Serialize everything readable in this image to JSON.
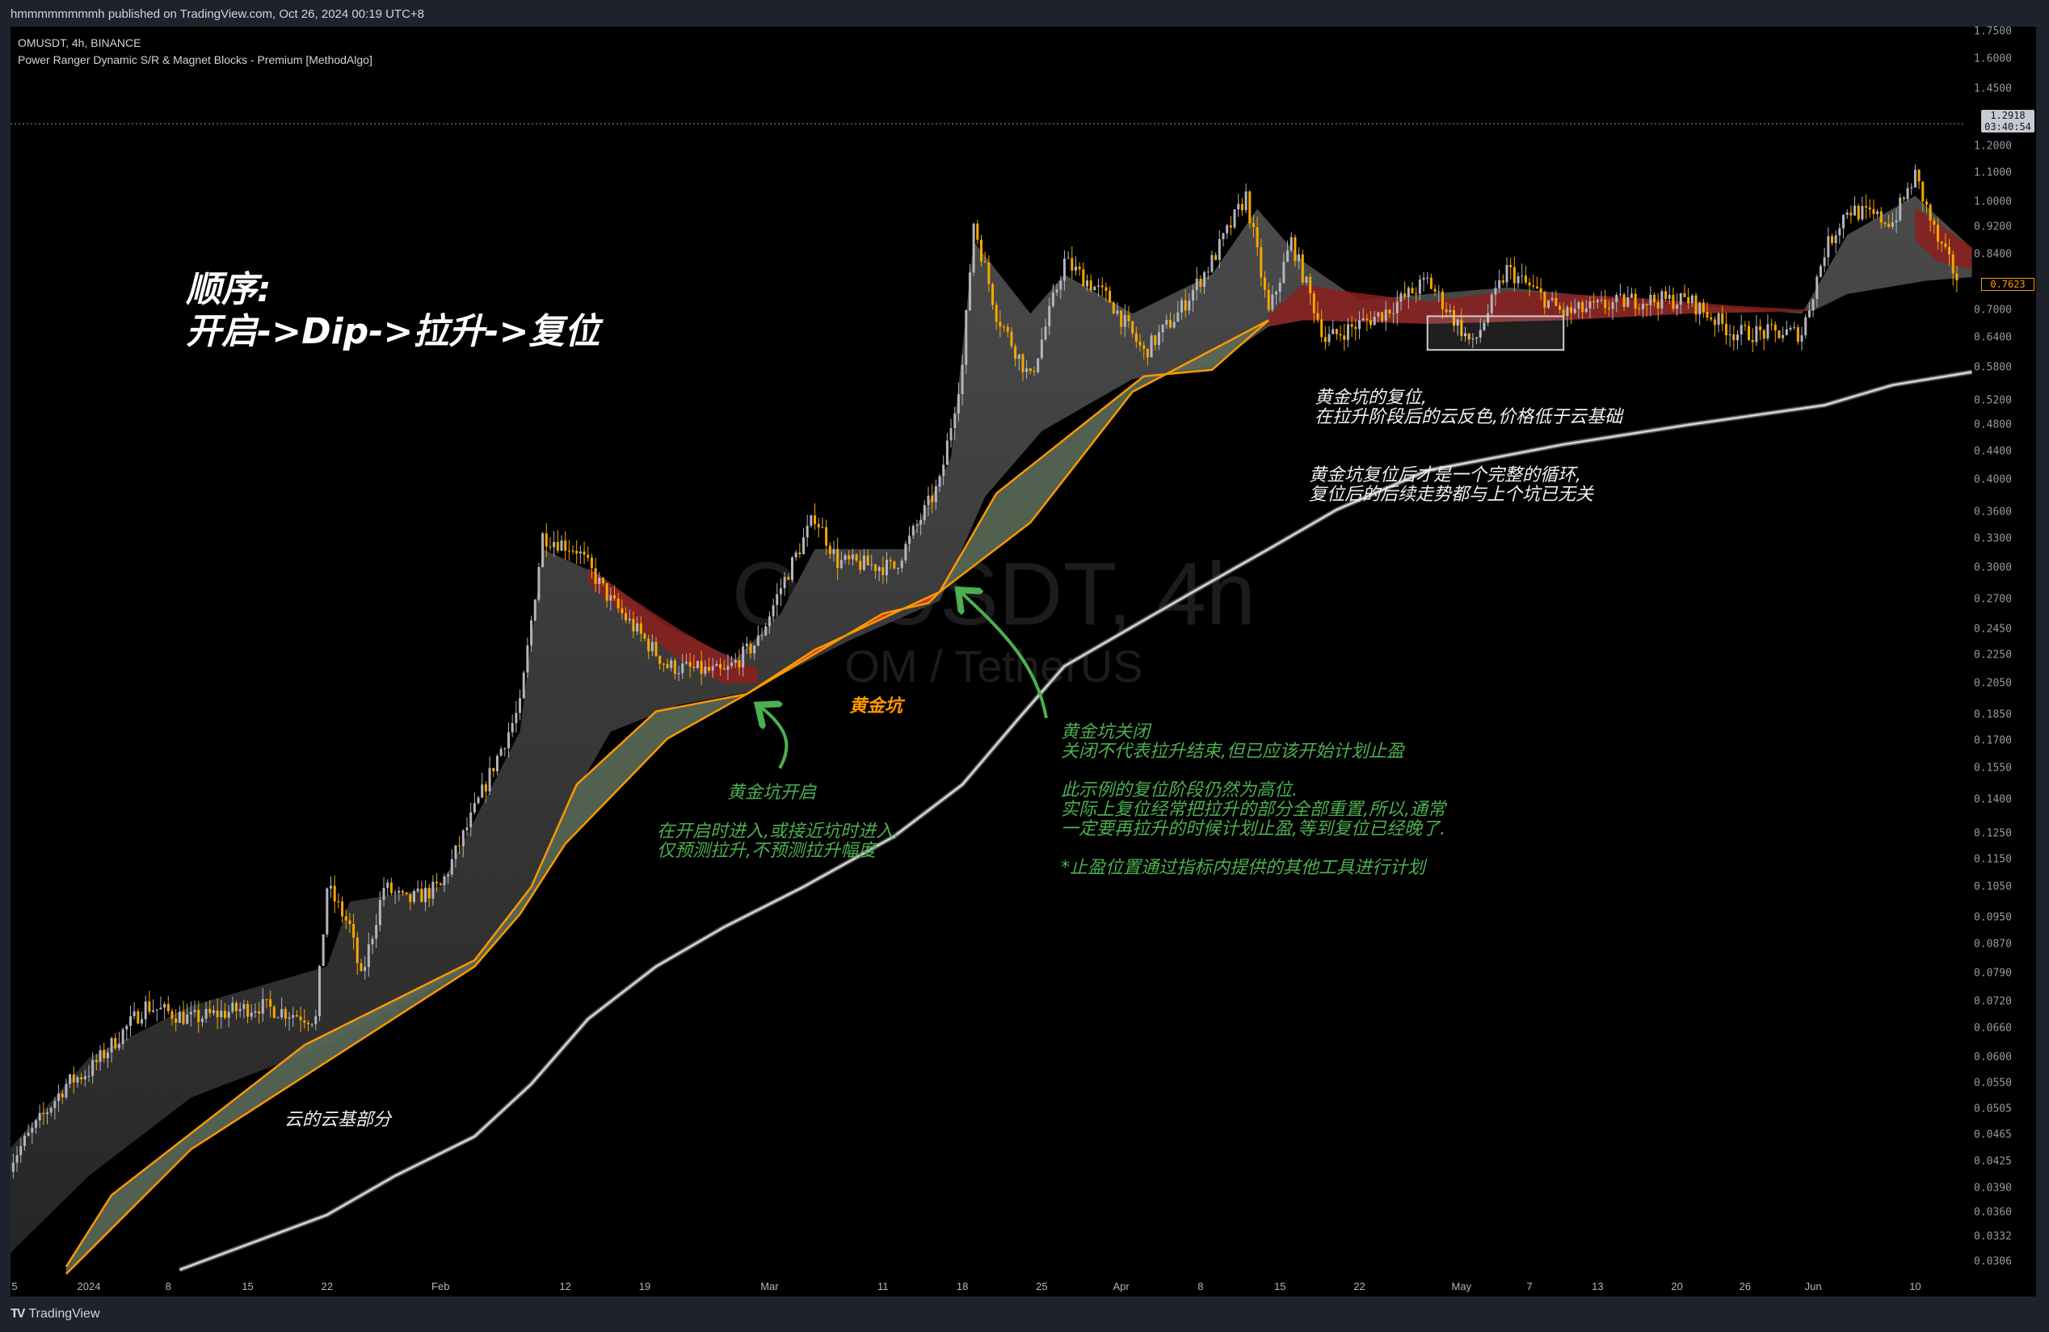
{
  "header": {
    "published": "hmmmmmmmmh published on TradingView.com, Oct 26, 2024 00:19 UTC+8"
  },
  "legend": {
    "symbol": "OMUSDT, 4h, BINANCE",
    "indicator": "Power Ranger Dynamic S/R & Magnet Blocks - Premium [MethodAlgo]"
  },
  "watermark": {
    "line1": "OMUSDT, 4h",
    "line2": "OM / TetherUS"
  },
  "footer": {
    "brand": "TradingView",
    "mark": "TV"
  },
  "annotations": {
    "title": "顺序:\n开启->Dip->拉升->复位",
    "cloud_base": "云的云基部分",
    "golden_pit": "黄金坑",
    "pit_open": "黄金坑开启",
    "pit_open_note": "在开启时进入,或接近坑时进入,\n仅预测拉升,不预测拉升幅度",
    "pit_close_note": "黄金坑关闭\n关闭不代表拉升结束,但已应该开始计划止盈\n\n此示例的复位阶段仍然为高位.\n实际上复位经常把拉升的部分全部重置,所以,通常\n一定要再拉升的时候计划止盈,等到复位已经晚了.\n\n*止盈位置通过指标内提供的其他工具进行计划",
    "reset_note": "黄金坑的复位,\n在拉升阶段后的云反色,价格低于云基础",
    "cycle_note": "黄金坑复位后才是一个完整的循环,\n复位后的后续走势都与上个坑已无关"
  },
  "colors": {
    "background": "#000000",
    "cloud": "#3a3a3a",
    "pit_line": "#ff9800",
    "pit_fill": "#5b6a59",
    "pit_red": "#c0392b",
    "red_cloud": "#8b1e1e",
    "ma": "#d8d8d8",
    "up_candle": "#b2b5be",
    "down_candle": "#f7a600",
    "note_green": "#4caf50"
  },
  "chart_data": {
    "type": "candlestick",
    "symbol": "OMUSDT",
    "interval": "4h",
    "exchange": "BINANCE",
    "y_scale": "log",
    "ylim": [
      0.0306,
      1.75
    ],
    "grid": false,
    "price_ticks": [
      1.75,
      1.6,
      1.45,
      1.2,
      1.1,
      1.0,
      0.92,
      0.84,
      0.7,
      0.64,
      0.58,
      0.52,
      0.48,
      0.44,
      0.4,
      0.36,
      0.33,
      0.3,
      0.27,
      0.245,
      0.225,
      0.205,
      0.185,
      0.17,
      0.155,
      0.14,
      0.125,
      0.115,
      0.105,
      0.095,
      0.087,
      0.079,
      0.072,
      0.066,
      0.06,
      0.055,
      0.0505,
      0.0465,
      0.0425,
      0.039,
      0.036,
      0.0332,
      0.0306
    ],
    "price_tick_labels": [
      "1.7500",
      "1.6000",
      "1.4500",
      "1.2000",
      "1.1000",
      "1.0000",
      "0.9200",
      "0.8400",
      "0.7000",
      "0.6400",
      "0.5800",
      "0.5200",
      "0.4800",
      "0.4400",
      "0.4000",
      "0.3600",
      "0.3300",
      "0.3000",
      "0.2700",
      "0.2450",
      "0.2250",
      "0.2050",
      "0.1850",
      "0.1700",
      "0.1550",
      "0.1400",
      "0.1250",
      "0.1150",
      "0.1050",
      "0.0950",
      "0.0870",
      "0.0790",
      "0.0720",
      "0.0660",
      "0.0600",
      "0.0550",
      "0.0505",
      "0.0465",
      "0.0425",
      "0.0390",
      "0.0360",
      "0.0332",
      "0.0306"
    ],
    "time_ticks": [
      {
        "label": "5",
        "date": "2023-12-25"
      },
      {
        "label": "2024",
        "date": "2024-01-01"
      },
      {
        "label": "8",
        "date": "2024-01-08"
      },
      {
        "label": "15",
        "date": "2024-01-15"
      },
      {
        "label": "22",
        "date": "2024-01-22"
      },
      {
        "label": "Feb",
        "date": "2024-02-01"
      },
      {
        "label": "12",
        "date": "2024-02-12"
      },
      {
        "label": "19",
        "date": "2024-02-19"
      },
      {
        "label": "Mar",
        "date": "2024-03-01"
      },
      {
        "label": "11",
        "date": "2024-03-11"
      },
      {
        "label": "18",
        "date": "2024-03-18"
      },
      {
        "label": "25",
        "date": "2024-03-25"
      },
      {
        "label": "Apr",
        "date": "2024-04-01"
      },
      {
        "label": "8",
        "date": "2024-04-08"
      },
      {
        "label": "15",
        "date": "2024-04-15"
      },
      {
        "label": "22",
        "date": "2024-04-22"
      },
      {
        "label": "May",
        "date": "2024-05-01"
      },
      {
        "label": "7",
        "date": "2024-05-07"
      },
      {
        "label": "13",
        "date": "2024-05-13"
      },
      {
        "label": "20",
        "date": "2024-05-20"
      },
      {
        "label": "26",
        "date": "2024-05-26"
      },
      {
        "label": "Jun",
        "date": "2024-06-01"
      },
      {
        "label": "10",
        "date": "2024-06-10"
      }
    ],
    "last_price_line": {
      "price": 1.2918,
      "label": "1.2918",
      "countdown": "03:40:54"
    },
    "current_price": {
      "price": 0.7623,
      "label": "0.7623"
    },
    "close": [
      [
        "2023-12-25",
        0.0424
      ],
      [
        "2023-12-30",
        0.0549
      ],
      [
        "2024-01-01",
        0.0573
      ],
      [
        "2024-01-06",
        0.071
      ],
      [
        "2024-01-10",
        0.068
      ],
      [
        "2024-01-16",
        0.071
      ],
      [
        "2024-01-21",
        0.068
      ],
      [
        "2024-01-22",
        0.105
      ],
      [
        "2024-01-24",
        0.092
      ],
      [
        "2024-01-25",
        0.0774
      ],
      [
        "2024-01-27",
        0.105
      ],
      [
        "2024-01-29",
        0.1
      ],
      [
        "2024-02-01",
        0.105
      ],
      [
        "2024-02-04",
        0.135
      ],
      [
        "2024-02-06",
        0.161
      ],
      [
        "2024-02-08",
        0.19
      ],
      [
        "2024-02-10",
        0.333
      ],
      [
        "2024-02-13",
        0.319
      ],
      [
        "2024-02-16",
        0.269
      ],
      [
        "2024-02-21",
        0.217
      ],
      [
        "2024-02-26",
        0.212
      ],
      [
        "2024-02-29",
        0.236
      ],
      [
        "2024-03-02",
        0.281
      ],
      [
        "2024-03-05",
        0.356
      ],
      [
        "2024-03-07",
        0.306
      ],
      [
        "2024-03-12",
        0.3
      ],
      [
        "2024-03-16",
        0.396
      ],
      [
        "2024-03-18",
        0.583
      ],
      [
        "2024-03-19",
        0.935
      ],
      [
        "2024-03-21",
        0.692
      ],
      [
        "2024-03-24",
        0.558
      ],
      [
        "2024-03-27",
        0.822
      ],
      [
        "2024-03-31",
        0.723
      ],
      [
        "2024-04-03",
        0.608
      ],
      [
        "2024-04-06",
        0.692
      ],
      [
        "2024-04-09",
        0.822
      ],
      [
        "2024-04-12",
        1.019
      ],
      [
        "2024-04-14",
        0.692
      ],
      [
        "2024-04-16",
        0.877
      ],
      [
        "2024-04-19",
        0.635
      ],
      [
        "2024-04-24",
        0.692
      ],
      [
        "2024-04-28",
        0.771
      ],
      [
        "2024-05-02",
        0.622
      ],
      [
        "2024-05-05",
        0.8
      ],
      [
        "2024-05-10",
        0.692
      ],
      [
        "2024-05-16",
        0.723
      ],
      [
        "2024-05-21",
        0.723
      ],
      [
        "2024-05-25",
        0.649
      ],
      [
        "2024-05-31",
        0.649
      ],
      [
        "2024-06-02",
        0.85
      ],
      [
        "2024-06-04",
        0.976
      ],
      [
        "2024-06-08",
        0.935
      ],
      [
        "2024-06-10",
        1.09
      ],
      [
        "2024-06-12",
        0.877
      ],
      [
        "2024-06-14",
        0.7623
      ]
    ],
    "cloud_top": [
      [
        "2023-12-25",
        0.0443
      ],
      [
        "2024-01-01",
        0.0598
      ],
      [
        "2024-01-10",
        0.071
      ],
      [
        "2024-01-22",
        0.0808
      ],
      [
        "2024-01-24",
        0.1
      ],
      [
        "2024-02-01",
        0.105
      ],
      [
        "2024-02-08",
        0.175
      ],
      [
        "2024-02-10",
        0.319
      ],
      [
        "2024-02-15",
        0.293
      ],
      [
        "2024-02-21",
        0.247
      ],
      [
        "2024-02-27",
        0.222
      ],
      [
        "2024-03-02",
        0.258
      ],
      [
        "2024-03-05",
        0.319
      ],
      [
        "2024-03-13",
        0.319
      ],
      [
        "2024-03-17",
        0.431
      ],
      [
        "2024-03-19",
        0.877
      ],
      [
        "2024-03-24",
        0.692
      ],
      [
        "2024-03-27",
        0.787
      ],
      [
        "2024-04-02",
        0.692
      ],
      [
        "2024-04-09",
        0.787
      ],
      [
        "2024-04-13",
        0.976
      ],
      [
        "2024-04-17",
        0.822
      ],
      [
        "2024-04-22",
        0.723
      ],
      [
        "2024-04-28",
        0.738
      ],
      [
        "2024-05-05",
        0.754
      ],
      [
        "2024-05-16",
        0.723
      ],
      [
        "2024-05-31",
        0.692
      ],
      [
        "2024-06-04",
        0.896
      ],
      [
        "2024-06-10",
        1.019
      ],
      [
        "2024-06-15",
        0.858
      ]
    ],
    "cloud_base": [
      [
        "2023-12-25",
        0.0314
      ],
      [
        "2024-01-01",
        0.0406
      ],
      [
        "2024-01-10",
        0.0525
      ],
      [
        "2024-01-22",
        0.0624
      ],
      [
        "2024-01-28",
        0.071
      ],
      [
        "2024-02-04",
        0.0808
      ],
      [
        "2024-02-08",
        0.096
      ],
      [
        "2024-02-12",
        0.135
      ],
      [
        "2024-02-16",
        0.175
      ],
      [
        "2024-02-22",
        0.191
      ],
      [
        "2024-02-28",
        0.199
      ],
      [
        "2024-03-08",
        0.236
      ],
      [
        "2024-03-16",
        0.269
      ],
      [
        "2024-03-20",
        0.379
      ],
      [
        "2024-03-25",
        0.47
      ],
      [
        "2024-04-02",
        0.558
      ],
      [
        "2024-04-09",
        0.583
      ],
      [
        "2024-04-14",
        0.663
      ],
      [
        "2024-04-17",
        0.677
      ],
      [
        "2024-04-28",
        0.669
      ],
      [
        "2024-05-10",
        0.677
      ],
      [
        "2024-05-21",
        0.692
      ],
      [
        "2024-06-01",
        0.698
      ],
      [
        "2024-06-04",
        0.738
      ],
      [
        "2024-06-11",
        0.771
      ],
      [
        "2024-06-15",
        0.78
      ]
    ],
    "pit_line_upper": [
      [
        "2023-12-30",
        0.0301
      ],
      [
        "2024-01-03",
        0.0381
      ],
      [
        "2024-01-20",
        0.0624
      ],
      [
        "2024-02-04",
        0.0825
      ],
      [
        "2024-02-09",
        0.105
      ],
      [
        "2024-02-13",
        0.147
      ],
      [
        "2024-02-20",
        0.187
      ],
      [
        "2024-02-28",
        0.198
      ],
      [
        "2024-03-05",
        0.229
      ],
      [
        "2024-03-16",
        0.277
      ],
      [
        "2024-03-21",
        0.383
      ],
      [
        "2024-04-03",
        0.563
      ],
      [
        "2024-04-09",
        0.575
      ],
      [
        "2024-04-14",
        0.677
      ]
    ],
    "pit_line_lower": [
      [
        "2023-12-30",
        0.0294
      ],
      [
        "2024-01-10",
        0.0443
      ],
      [
        "2024-02-04",
        0.0808
      ],
      [
        "2024-02-08",
        0.096
      ],
      [
        "2024-02-12",
        0.121
      ],
      [
        "2024-02-21",
        0.171
      ],
      [
        "2024-02-28",
        0.198
      ],
      [
        "2024-03-11",
        0.258
      ],
      [
        "2024-03-15",
        0.267
      ],
      [
        "2024-03-16",
        0.277
      ],
      [
        "2024-03-24",
        0.348
      ],
      [
        "2024-04-02",
        0.535
      ],
      [
        "2024-04-14",
        0.677
      ]
    ],
    "pit_zone": {
      "start": "2024-02-28",
      "end": "2024-03-16"
    },
    "red_cloud_segments": [
      {
        "top": [
          [
            "2024-02-14",
            0.3
          ],
          [
            "2024-02-18",
            0.27
          ],
          [
            "2024-02-22",
            0.245
          ],
          [
            "2024-02-26",
            0.225
          ],
          [
            "2024-02-29",
            0.215
          ]
        ],
        "bottom": [
          [
            "2024-02-14",
            0.285
          ],
          [
            "2024-02-18",
            0.25
          ],
          [
            "2024-02-22",
            0.222
          ],
          [
            "2024-02-26",
            0.205
          ],
          [
            "2024-02-29",
            0.205
          ]
        ]
      },
      {
        "top": [
          [
            "2024-04-14",
            0.69
          ],
          [
            "2024-04-17",
            0.76
          ],
          [
            "2024-04-22",
            0.74
          ],
          [
            "2024-04-28",
            0.72
          ],
          [
            "2024-05-05",
            0.745
          ],
          [
            "2024-05-16",
            0.73
          ],
          [
            "2024-05-25",
            0.71
          ],
          [
            "2024-06-01",
            0.7
          ]
        ],
        "bottom": [
          [
            "2024-04-14",
            0.663
          ],
          [
            "2024-04-17",
            0.677
          ],
          [
            "2024-04-28",
            0.669
          ],
          [
            "2024-05-10",
            0.677
          ],
          [
            "2024-05-21",
            0.692
          ],
          [
            "2024-06-01",
            0.698
          ]
        ]
      },
      {
        "top": [
          [
            "2024-06-10",
            0.98
          ],
          [
            "2024-06-12",
            0.93
          ],
          [
            "2024-06-15",
            0.86
          ]
        ],
        "bottom": [
          [
            "2024-06-10",
            0.88
          ],
          [
            "2024-06-12",
            0.82
          ],
          [
            "2024-06-15",
            0.8
          ]
        ]
      }
    ],
    "moving_average": [
      [
        "2024-01-09",
        0.0298
      ],
      [
        "2024-01-22",
        0.0357
      ],
      [
        "2024-01-28",
        0.0406
      ],
      [
        "2024-02-04",
        0.0462
      ],
      [
        "2024-02-09",
        0.0549
      ],
      [
        "2024-02-14",
        0.068
      ],
      [
        "2024-02-20",
        0.0808
      ],
      [
        "2024-02-26",
        0.092
      ],
      [
        "2024-03-04",
        0.105
      ],
      [
        "2024-03-12",
        0.124
      ],
      [
        "2024-03-18",
        0.147
      ],
      [
        "2024-03-23",
        0.183
      ],
      [
        "2024-03-27",
        0.217
      ],
      [
        "2024-04-02",
        0.247
      ],
      [
        "2024-04-08",
        0.281
      ],
      [
        "2024-04-14",
        0.319
      ],
      [
        "2024-04-20",
        0.363
      ],
      [
        "2024-04-28",
        0.413
      ],
      [
        "2024-05-10",
        0.45
      ],
      [
        "2024-05-21",
        0.48
      ],
      [
        "2024-06-02",
        0.512
      ],
      [
        "2024-06-08",
        0.547
      ],
      [
        "2024-06-15",
        0.571
      ]
    ],
    "box": {
      "start": "2024-04-28",
      "end": "2024-05-10",
      "high": 0.686,
      "low": 0.614
    }
  }
}
